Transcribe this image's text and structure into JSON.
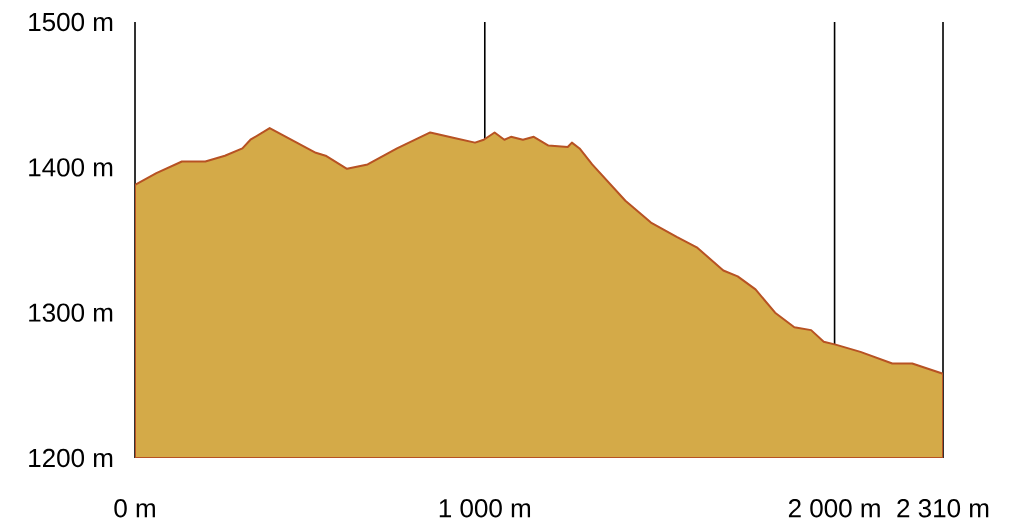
{
  "chart_data": {
    "type": "area",
    "x": [
      0,
      61,
      134,
      201,
      257,
      307,
      330,
      385,
      517,
      545,
      606,
      665,
      749,
      844,
      916,
      972,
      997,
      1028,
      1056,
      1075,
      1109,
      1140,
      1182,
      1237,
      1249,
      1271,
      1307,
      1402,
      1475,
      1550,
      1606,
      1682,
      1723,
      1774,
      1830,
      1885,
      1933,
      1969,
      2003,
      2074,
      2165,
      2222,
      2310
    ],
    "series": [
      {
        "color": "#d4aa48",
        "values": [
          1388,
          1396,
          1404,
          1404,
          1408,
          1413,
          1419,
          1427,
          1410,
          1408,
          1399,
          1402,
          1413,
          1424,
          1420,
          1417,
          1419,
          1424,
          1419,
          1421,
          1419,
          1421,
          1415,
          1414,
          1417,
          1413,
          1402,
          1377,
          1362,
          1352,
          1345,
          1329,
          1325,
          1316,
          1300,
          1290,
          1288,
          1280,
          1278,
          1273,
          1265,
          1265,
          1258
        ]
      }
    ],
    "xlim": [
      0,
      2310
    ],
    "ylim": [
      1200,
      1500
    ],
    "xticks": [
      {
        "value": 0,
        "label": "0 m"
      },
      {
        "value": 1000,
        "label": "1 000 m"
      },
      {
        "value": 2000,
        "label": "2 000 m"
      },
      {
        "value": 2310,
        "label": "2 310 m"
      }
    ],
    "yticks": [
      {
        "value": 1200,
        "label": "1200 m"
      },
      {
        "value": 1300,
        "label": "1300 m"
      },
      {
        "value": 1400,
        "label": "1400 m"
      },
      {
        "value": 1500,
        "label": "1500 m"
      }
    ],
    "grid": "x"
  }
}
